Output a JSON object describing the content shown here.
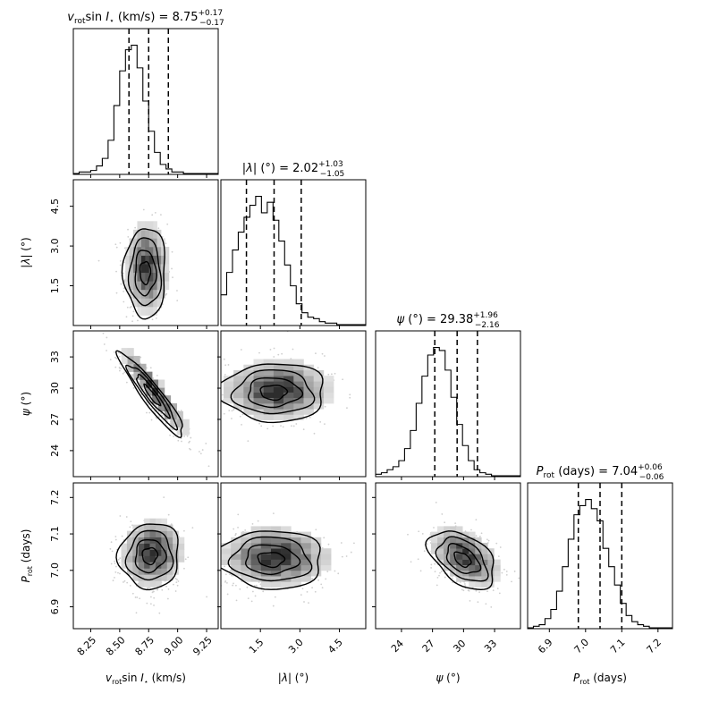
{
  "chart_data": {
    "type": "corner",
    "parameters": [
      {
        "key": "vsini",
        "label": "v_rot sin I⋆ (km/s)",
        "range": [
          8.1,
          9.35
        ],
        "ticks": [
          8.25,
          8.5,
          8.75,
          9.0,
          9.25
        ],
        "tick_labels": [
          "8.25",
          "8.50",
          "8.75",
          "9.00",
          "9.25"
        ]
      },
      {
        "key": "lambda",
        "label": "|λ| (°)",
        "range": [
          0.0,
          5.5
        ],
        "ticks": [
          1.5,
          3.0,
          4.5
        ],
        "tick_labels": [
          "1.5",
          "3.0",
          "4.5"
        ]
      },
      {
        "key": "psi",
        "label": "ψ (°)",
        "range": [
          21.5,
          35.5
        ],
        "ticks": [
          24,
          27,
          30,
          33
        ],
        "tick_labels": [
          "24",
          "27",
          "30",
          "33"
        ]
      },
      {
        "key": "prot",
        "label": "P_rot (days)",
        "range": [
          6.84,
          7.24
        ],
        "ticks": [
          6.9,
          7.0,
          7.1,
          7.2
        ],
        "tick_labels": [
          "6.9",
          "7.0",
          "7.1",
          "7.2"
        ]
      }
    ],
    "titles": [
      {
        "param": "vsini",
        "name": "v",
        "sub": "rot",
        "rest": "sin ",
        "italic2": "I",
        "star": "⋆",
        "unit": " (km/s) = ",
        "value": "8.75",
        "plus": "+0.17",
        "minus": "−0.17"
      },
      {
        "param": "lambda",
        "pre": "|",
        "name": "λ",
        "sub": "",
        "rest": "| (°) = ",
        "value": "2.02",
        "plus": "+1.03",
        "minus": "−1.05"
      },
      {
        "param": "psi",
        "name": "ψ",
        "sub": "",
        "rest": " (°) = ",
        "value": "29.38",
        "plus": "+1.96",
        "minus": "−2.16"
      },
      {
        "param": "prot",
        "name": "P",
        "sub": "rot",
        "rest": " (days) = ",
        "value": "7.04",
        "plus": "+0.06",
        "minus": "−0.06"
      }
    ],
    "quantiles": {
      "vsini": [
        8.58,
        8.75,
        8.92
      ],
      "lambda": [
        0.97,
        2.02,
        3.05
      ],
      "psi": [
        27.22,
        29.38,
        31.34
      ],
      "prot": [
        6.98,
        7.04,
        7.1
      ]
    },
    "histograms": {
      "vsini": {
        "edges_start": 8.1,
        "bin_width": 0.05,
        "counts": [
          0,
          1,
          1,
          2,
          5,
          10,
          22,
          45,
          68,
          82,
          85,
          70,
          48,
          28,
          14,
          6,
          3,
          1,
          1,
          0,
          0,
          0,
          0,
          0,
          0
        ]
      },
      "lambda": {
        "edges_start": 0.0,
        "bin_width": 0.22,
        "counts": [
          20,
          35,
          50,
          62,
          72,
          80,
          86,
          75,
          82,
          70,
          56,
          40,
          26,
          14,
          8,
          5,
          4,
          2,
          1,
          1,
          0,
          0,
          0,
          0,
          0
        ]
      },
      "psi": {
        "edges_start": 21.5,
        "bin_width": 0.56,
        "counts": [
          1,
          2,
          4,
          6,
          10,
          18,
          30,
          48,
          66,
          80,
          85,
          83,
          70,
          52,
          34,
          20,
          10,
          4,
          2,
          1,
          0,
          0,
          0,
          0,
          0
        ]
      },
      "prot": {
        "edges_start": 6.84,
        "bin_width": 0.016,
        "counts": [
          0,
          1,
          2,
          6,
          12,
          24,
          40,
          58,
          74,
          80,
          84,
          78,
          70,
          52,
          40,
          28,
          16,
          8,
          4,
          2,
          1,
          0,
          0,
          0,
          0
        ]
      }
    },
    "joint": [
      {
        "x": "vsini",
        "y": "lambda",
        "center": [
          8.72,
          2.0
        ],
        "sd": [
          0.09,
          0.85
        ],
        "rho": 0.0,
        "clip_y": 0.0
      },
      {
        "x": "vsini",
        "y": "psi",
        "center": [
          8.78,
          29.3
        ],
        "sd": [
          0.14,
          2.0
        ],
        "rho": -0.93
      },
      {
        "x": "vsini",
        "y": "prot",
        "center": [
          8.76,
          7.04
        ],
        "sd": [
          0.13,
          0.045
        ],
        "rho": 0.05
      },
      {
        "x": "lambda",
        "y": "psi",
        "center": [
          2.0,
          29.6
        ],
        "sd": [
          1.0,
          1.4
        ],
        "rho": 0.0
      },
      {
        "x": "lambda",
        "y": "prot",
        "center": [
          1.9,
          7.03
        ],
        "sd": [
          1.0,
          0.04
        ],
        "rho": -0.05
      },
      {
        "x": "psi",
        "y": "prot",
        "center": [
          29.9,
          7.03
        ],
        "sd": [
          1.6,
          0.04
        ],
        "rho": -0.45
      }
    ],
    "contour_levels_sigma": [
      0.5,
      1.0,
      1.5,
      2.0
    ],
    "grid": false
  }
}
